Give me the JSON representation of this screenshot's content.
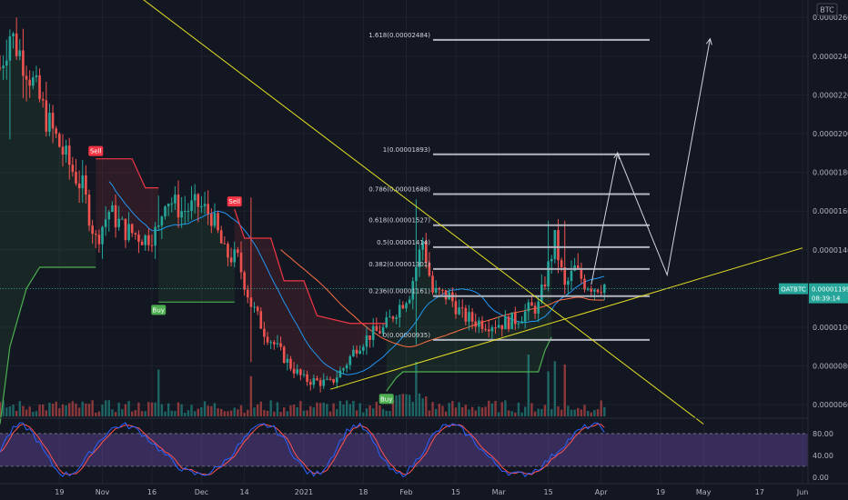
{
  "chart_data": {
    "type": "candlestick",
    "currency_badge": "BTC",
    "price_scale": {
      "tick_labels": [
        "0.00002600",
        "0.00002400",
        "0.00002200",
        "0.00002000",
        "0.00001800",
        "0.00001600",
        "0.00001400",
        "0.00001200",
        "0.00001000",
        "0.00000800",
        "0.00000600"
      ],
      "tick_values": [
        2.6e-05,
        2.4e-05,
        2.2e-05,
        2e-05,
        1.8e-05,
        1.6e-05,
        1.4e-05,
        1.2e-05,
        1e-05,
        8e-06,
        6e-06
      ],
      "ylim": [
        5.4e-06,
        2.69e-05
      ]
    },
    "oscillator_scale": {
      "tick_labels": [
        "80.00",
        "40.00",
        "0.00"
      ],
      "tick_values": [
        80,
        40,
        0
      ],
      "ylim": [
        -12,
        105
      ],
      "band": [
        20,
        80
      ]
    },
    "time_axis": {
      "labels": [
        "19",
        "Nov",
        "16",
        "Dec",
        "14",
        "2021",
        "18",
        "Feb",
        "15",
        "Mar",
        "15",
        "Apr",
        "19",
        "May",
        "17",
        "Jun"
      ],
      "label_days": [
        18,
        31,
        46,
        61,
        74,
        92,
        110,
        123,
        138,
        151,
        166,
        182,
        200,
        213,
        230,
        243
      ]
    },
    "last_price_label": "OATBTC",
    "last_price": "0.00001199",
    "countdown": "08:39:14",
    "fib_levels": [
      {
        "label": "1.618(0.00002484)",
        "price": 2.484e-05
      },
      {
        "label": "1(0.00001893)",
        "price": 1.893e-05
      },
      {
        "label": "0.786(0.00001688)",
        "price": 1.688e-05
      },
      {
        "label": "0.618(0.00001527)",
        "price": 1.527e-05
      },
      {
        "label": "0.5(0.00001414)",
        "price": 1.414e-05
      },
      {
        "label": "0.382(0.00001301)",
        "price": 1.301e-05
      },
      {
        "label": "0.236(0.00001161)",
        "price": 1.161e-05
      },
      {
        "label": "0(0.00000935)",
        "price": 9.35e-06
      }
    ],
    "signals": [
      {
        "label": "Sell",
        "day": 29,
        "price": 1.87e-05,
        "type": "sell"
      },
      {
        "label": "Buy",
        "day": 48,
        "price": 1.13e-05,
        "type": "buy"
      },
      {
        "label": "Sell",
        "day": 71,
        "price": 1.61e-05,
        "type": "sell"
      },
      {
        "label": "Buy",
        "day": 117,
        "price": 6.7e-06,
        "type": "buy"
      }
    ],
    "trendlines": [
      {
        "from": [
          42,
          2.71e-05
        ],
        "to": [
          213,
          5e-06
        ],
        "color": "#e6e023"
      },
      {
        "from": [
          100,
          6.8e-06
        ],
        "to": [
          243,
          1.41e-05
        ],
        "color": "#e6e023"
      }
    ],
    "projection": {
      "points": [
        [
          179,
          1.22e-05
        ],
        [
          187,
          1.9e-05
        ],
        [
          202,
          1.27e-05
        ],
        [
          215,
          2.49e-05
        ]
      ],
      "color": "#d1d4dc"
    },
    "colors": {
      "up": "#26a69a",
      "down": "#ef5350",
      "ma_blue": "#2196f3",
      "ma_orange": "#ff7043",
      "stoch_k": "#2962ff",
      "stoch_d": "#ff5252",
      "band": "#4a1d88",
      "supertrend_green": "#4caf50",
      "supertrend_red": "#f23645"
    }
  }
}
